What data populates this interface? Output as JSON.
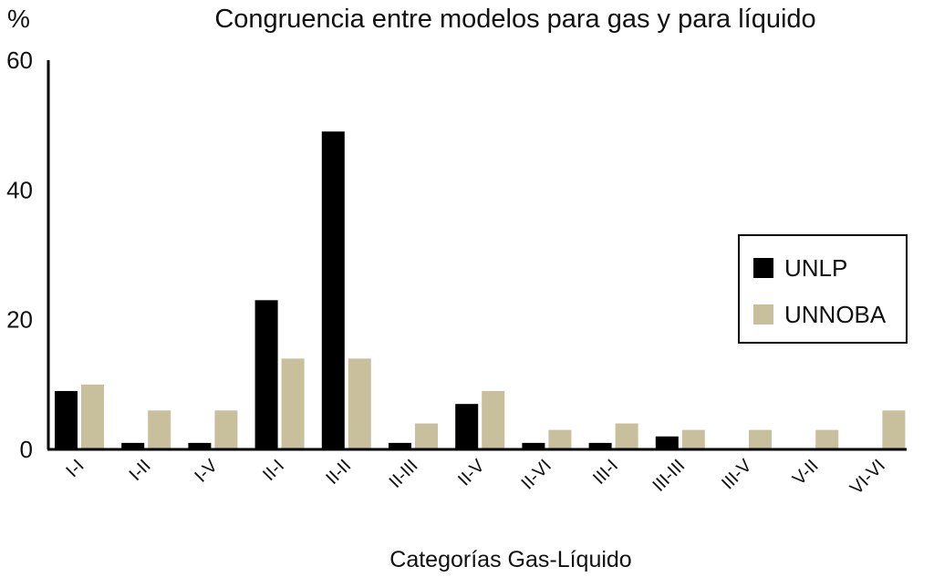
{
  "chart_data": {
    "type": "bar",
    "title": "Congruencia entre modelos para gas y para líquido",
    "ylabel": "%",
    "xlabel": "Categorías Gas-Líquido",
    "categories": [
      "I-I",
      "I-II",
      "I-V",
      "II-I",
      "II-II",
      "II-III",
      "II-V",
      "II-VI",
      "III-I",
      "III-III",
      "III-V",
      "V-II",
      "VI-VI"
    ],
    "series": [
      {
        "name": "UNLP",
        "color": "#000000",
        "values": [
          9,
          1,
          1,
          23,
          49,
          1,
          7,
          1,
          1,
          2,
          0,
          0,
          0
        ]
      },
      {
        "name": "UNNOBA",
        "color": "#c8bf9c",
        "values": [
          10,
          6,
          6,
          14,
          14,
          4,
          9,
          3,
          4,
          3,
          3,
          3,
          6
        ]
      }
    ],
    "ylim": [
      0,
      60
    ],
    "yticks": [
      "0",
      "20",
      "40",
      "60"
    ],
    "grid": false,
    "legend_position": "right"
  }
}
